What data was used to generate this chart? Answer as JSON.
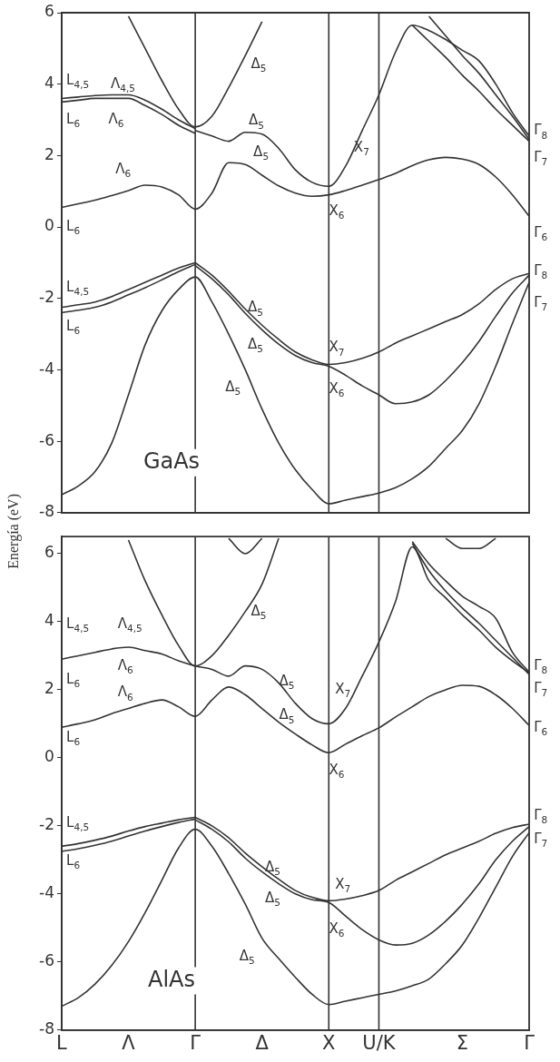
{
  "chart_data": [
    {
      "type": "line",
      "ylabel": "Energía (eV)",
      "categories": [
        "L",
        null,
        null,
        null,
        "Λ",
        null,
        null,
        null,
        "Γ",
        null,
        null,
        null,
        "Δ",
        null,
        null,
        null,
        "X",
        null,
        null,
        "U/K",
        null,
        null,
        null,
        null,
        "Σ",
        null,
        null,
        null,
        "Γ"
      ],
      "ylim": [
        -8,
        6
      ],
      "yticks": [
        -8,
        -6,
        -4,
        -2,
        0,
        2,
        4,
        6
      ],
      "tick_labels": "y",
      "grid": false,
      "legend": false,
      "ref_lines": [
        {
          "axis": "x",
          "value": "Γ"
        },
        {
          "axis": "x",
          "value": "X"
        },
        {
          "axis": "x",
          "value": "U/K"
        }
      ],
      "series": [
        {
          "color": "#333333",
          "values": [
            0.55,
            0.65,
            0.75,
            0.88,
            1.02,
            1.17,
            1.12,
            0.9,
            0.5,
            0.95,
            1.8,
            1.75,
            1.45,
            1.15,
            0.95,
            0.86,
            0.9,
            1.02,
            1.17,
            1.33,
            1.5,
            1.72,
            1.88,
            1.95,
            1.9,
            1.75,
            1.4,
            0.9,
            0.3
          ]
        },
        {
          "color": "#333333",
          "values": [
            3.6,
            3.64,
            3.68,
            3.7,
            3.7,
            3.55,
            3.3,
            3.0,
            2.75,
            null,
            null,
            null,
            null,
            null,
            null,
            null,
            null,
            null,
            null,
            null,
            null,
            null,
            null,
            null,
            null,
            null,
            null,
            null,
            null
          ]
        },
        {
          "color": "#333333",
          "values": [
            3.5,
            3.55,
            3.6,
            3.6,
            3.6,
            3.4,
            3.15,
            2.85,
            2.62,
            null,
            null,
            null,
            null,
            null,
            null,
            null,
            null,
            null,
            null,
            null,
            null,
            null,
            null,
            null,
            null,
            null,
            null,
            null,
            null
          ]
        },
        {
          "color": "#333333",
          "values": [
            null,
            null,
            null,
            null,
            5.9,
            5.0,
            4.1,
            3.3,
            2.8,
            3.1,
            3.9,
            4.8,
            5.75,
            null,
            null,
            null,
            null,
            null,
            null,
            null,
            null,
            null,
            null,
            null,
            null,
            null,
            null,
            null,
            null
          ]
        },
        {
          "color": "#333333",
          "values": [
            null,
            null,
            null,
            null,
            null,
            null,
            null,
            null,
            2.7,
            2.55,
            2.4,
            2.65,
            2.6,
            2.2,
            1.6,
            1.25,
            1.14,
            1.7,
            2.7,
            3.7,
            4.9,
            5.65,
            5.5,
            5.25,
            4.95,
            4.65,
            4.0,
            3.2,
            2.55
          ]
        },
        {
          "color": "#333333",
          "values": [
            null,
            null,
            null,
            null,
            null,
            null,
            null,
            null,
            null,
            null,
            null,
            null,
            null,
            null,
            null,
            null,
            null,
            null,
            null,
            null,
            null,
            null,
            5.9,
            5.35,
            4.8,
            4.3,
            3.7,
            3.1,
            2.45
          ]
        },
        {
          "color": "#333333",
          "values": [
            null,
            null,
            null,
            null,
            null,
            null,
            null,
            null,
            null,
            null,
            null,
            null,
            null,
            null,
            null,
            null,
            null,
            null,
            null,
            null,
            null,
            5.65,
            5.2,
            4.75,
            4.25,
            3.8,
            3.3,
            2.85,
            2.4
          ]
        },
        {
          "color": "#333333",
          "values": [
            -2.25,
            -2.18,
            -2.1,
            -1.95,
            -1.75,
            -1.55,
            -1.35,
            -1.15,
            -1.0,
            null,
            null,
            null,
            null,
            null,
            null,
            null,
            null,
            null,
            null,
            null,
            null,
            null,
            null,
            null,
            null,
            null,
            null,
            null,
            null
          ]
        },
        {
          "color": "#333333",
          "values": [
            -2.4,
            -2.33,
            -2.25,
            -2.1,
            -1.9,
            -1.7,
            -1.48,
            -1.25,
            -1.05,
            null,
            null,
            null,
            null,
            null,
            null,
            null,
            null,
            null,
            null,
            null,
            null,
            null,
            null,
            null,
            null,
            null,
            null,
            null,
            null
          ]
        },
        {
          "color": "#333333",
          "values": [
            null,
            null,
            null,
            null,
            null,
            null,
            null,
            null,
            -1.0,
            -1.35,
            -1.8,
            -2.3,
            -2.75,
            -3.15,
            -3.5,
            -3.72,
            -3.85,
            -3.8,
            -3.68,
            -3.5,
            -3.25,
            -3.05,
            -2.85,
            -2.65,
            -2.45,
            -2.15,
            -1.75,
            -1.45,
            -1.3
          ]
        },
        {
          "color": "#333333",
          "values": [
            null,
            null,
            null,
            null,
            null,
            null,
            null,
            null,
            -1.08,
            -1.45,
            -1.9,
            -2.42,
            -2.88,
            -3.28,
            -3.6,
            -3.8,
            -3.9,
            -4.15,
            -4.45,
            -4.7,
            -4.95,
            -4.9,
            -4.7,
            -4.3,
            -3.8,
            -3.2,
            -2.5,
            -1.85,
            -1.35
          ]
        },
        {
          "color": "#333333",
          "values": [
            -7.5,
            -7.25,
            -6.85,
            -6.05,
            -4.7,
            -3.3,
            -2.35,
            -1.75,
            -1.4,
            -2.1,
            -3.0,
            -4.0,
            -5.1,
            -6.05,
            -6.8,
            -7.35,
            -7.75,
            -7.65,
            -7.55,
            -7.45,
            -7.3,
            -7.05,
            -6.7,
            -6.2,
            -5.7,
            -4.95,
            -3.9,
            -2.7,
            -1.55
          ]
        }
      ],
      "annotations": [
        "GaAs",
        "L$_{4,5}$",
        "Λ$_{4,5}$",
        "L$_{6}$",
        "Λ$_{6}$",
        "Λ$_{6}$",
        "L$_{6}$",
        "L$_{4,5}$",
        "L$_{6}$",
        "Δ$_{5}$",
        "Δ$_{5}$",
        "Δ$_{5}$",
        "Δ$_{5}$",
        "Δ$_{5}$",
        "Δ$_{5}$",
        "X$_{7}$",
        "X$_{6}$",
        "X$_{7}$",
        "X$_{6}$",
        "Γ$_{8}$",
        "Γ$_{7}$",
        "Γ$_{6}$",
        "Γ$_{8}$",
        "Γ$_{7}$"
      ]
    },
    {
      "type": "line",
      "categories": [
        "L",
        null,
        null,
        null,
        "Λ",
        null,
        null,
        null,
        "Γ",
        null,
        null,
        null,
        "Δ",
        null,
        null,
        null,
        "X",
        null,
        null,
        "U/K",
        null,
        null,
        null,
        null,
        "Σ",
        null,
        null,
        null,
        "Γ"
      ],
      "ylim": [
        -8,
        6.5
      ],
      "yticks": [
        -8,
        -6,
        -4,
        -2,
        0,
        2,
        4,
        6
      ],
      "grid": false,
      "legend": false,
      "ref_lines": [
        {
          "axis": "x",
          "value": "Γ"
        },
        {
          "axis": "x",
          "value": "X"
        },
        {
          "axis": "x",
          "value": "U/K"
        }
      ],
      "series": [
        {
          "color": "#333333",
          "values": [
            0.9,
            1.0,
            1.12,
            1.3,
            1.45,
            1.6,
            1.7,
            1.5,
            1.22,
            1.7,
            2.08,
            1.85,
            1.45,
            1.05,
            0.7,
            0.38,
            0.15,
            0.4,
            0.65,
            0.88,
            1.2,
            1.5,
            1.8,
            2.0,
            2.13,
            2.1,
            1.85,
            1.45,
            0.95
          ]
        },
        {
          "color": "#333333",
          "values": [
            2.9,
            3.0,
            3.1,
            3.2,
            3.25,
            3.15,
            3.05,
            2.85,
            2.7,
            2.6,
            2.4,
            2.7,
            2.6,
            2.2,
            1.6,
            1.15,
            1.0,
            1.45,
            2.4,
            3.4,
            4.6,
            6.2,
            5.2,
            4.7,
            4.2,
            3.75,
            3.25,
            2.85,
            2.5
          ]
        },
        {
          "color": "#333333",
          "values": [
            null,
            null,
            null,
            null,
            null,
            null,
            null,
            null,
            null,
            null,
            null,
            null,
            null,
            null,
            null,
            null,
            null,
            null,
            null,
            null,
            null,
            6.35,
            5.7,
            5.2,
            4.75,
            4.45,
            4.1,
            3.1,
            2.52
          ]
        },
        {
          "color": "#333333",
          "values": [
            null,
            null,
            null,
            null,
            null,
            null,
            null,
            null,
            null,
            null,
            null,
            null,
            null,
            null,
            null,
            null,
            null,
            null,
            null,
            null,
            null,
            6.3,
            5.5,
            4.9,
            4.4,
            3.95,
            3.45,
            2.95,
            2.45
          ]
        },
        {
          "color": "#333333",
          "values": [
            null,
            null,
            null,
            null,
            6.4,
            5.2,
            4.2,
            3.3,
            2.7,
            3.0,
            3.6,
            4.3,
            5.1,
            6.45,
            null,
            null,
            null,
            null,
            null,
            null,
            null,
            null,
            null,
            null,
            null,
            null,
            null,
            null,
            null
          ]
        },
        {
          "color": "#333333",
          "values": [
            null,
            null,
            null,
            null,
            null,
            null,
            null,
            null,
            null,
            null,
            6.45,
            6.0,
            6.45,
            null,
            null,
            null,
            null,
            null,
            null,
            null,
            null,
            null,
            null,
            null,
            null,
            null,
            null,
            null,
            null
          ]
        },
        {
          "color": "#333333",
          "values": [
            null,
            null,
            null,
            null,
            null,
            null,
            null,
            null,
            null,
            null,
            null,
            null,
            null,
            null,
            null,
            null,
            null,
            null,
            null,
            null,
            null,
            null,
            null,
            6.45,
            6.15,
            6.15,
            6.45,
            null,
            null
          ]
        },
        {
          "color": "#333333",
          "values": [
            -2.6,
            -2.52,
            -2.42,
            -2.3,
            -2.15,
            -2.02,
            -1.92,
            -1.82,
            -1.75,
            null,
            null,
            null,
            null,
            null,
            null,
            null,
            null,
            null,
            null,
            null,
            null,
            null,
            null,
            null,
            null,
            null,
            null,
            null,
            null
          ]
        },
        {
          "color": "#333333",
          "values": [
            -2.75,
            -2.67,
            -2.57,
            -2.45,
            -2.3,
            -2.15,
            -2.02,
            -1.9,
            -1.8,
            null,
            null,
            null,
            null,
            null,
            null,
            null,
            null,
            null,
            null,
            null,
            null,
            null,
            null,
            null,
            null,
            null,
            null,
            null,
            null
          ]
        },
        {
          "color": "#333333",
          "values": [
            null,
            null,
            null,
            null,
            null,
            null,
            null,
            null,
            -1.75,
            -2.0,
            -2.35,
            -2.8,
            -3.2,
            -3.57,
            -3.9,
            -4.1,
            -4.2,
            -4.15,
            -4.05,
            -3.9,
            -3.6,
            -3.35,
            -3.1,
            -2.85,
            -2.65,
            -2.45,
            -2.22,
            -2.05,
            -1.95
          ]
        },
        {
          "color": "#333333",
          "values": [
            null,
            null,
            null,
            null,
            null,
            null,
            null,
            null,
            -1.82,
            -2.1,
            -2.47,
            -2.95,
            -3.35,
            -3.7,
            -4.0,
            -4.17,
            -4.25,
            -4.65,
            -5.05,
            -5.35,
            -5.5,
            -5.45,
            -5.2,
            -4.8,
            -4.3,
            -3.7,
            -3.0,
            -2.45,
            -2.02
          ]
        },
        {
          "color": "#333333",
          "values": [
            -7.3,
            -7.05,
            -6.65,
            -6.1,
            -5.4,
            -4.55,
            -3.6,
            -2.65,
            -2.1,
            -2.6,
            -3.4,
            -4.3,
            -5.3,
            -5.9,
            -6.45,
            -6.95,
            -7.25,
            -7.15,
            -7.05,
            -6.95,
            -6.85,
            -6.7,
            -6.5,
            -6.05,
            -5.5,
            -4.7,
            -3.8,
            -2.9,
            -2.2
          ]
        }
      ],
      "annotations": [
        "AlAs",
        "L$_{4,5}$",
        "Λ$_{4,5}$",
        "Λ$_{6}$",
        "L$_{6}$",
        "Λ$_{6}$",
        "L$_{6}$",
        "L$_{4,5}$",
        "L$_{6}$",
        "Δ$_{5}$",
        "Δ$_{5}$",
        "Δ$_{5}$",
        "Δ$_{5}$",
        "Δ$_{5}$",
        "Δ$_{5}$",
        "X$_{7}$",
        "X$_{6}$",
        "X$_{7}$",
        "X$_{6}$",
        "Γ$_{8}$",
        "Γ$_{7}$",
        "Γ$_{6}$",
        "Γ$_{8}$",
        "Γ$_{7}$"
      ]
    }
  ]
}
